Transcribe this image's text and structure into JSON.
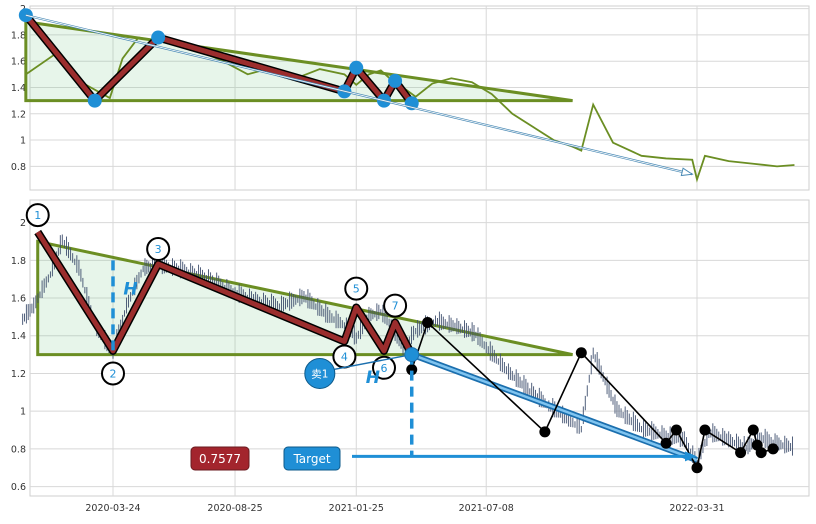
{
  "chart_data": [
    {
      "panel": "top",
      "type": "line",
      "ylim": [
        0.62,
        2.02
      ],
      "yticks": [
        0.8,
        1.0,
        1.2,
        1.4,
        1.6,
        1.8,
        2.0
      ],
      "grid": true,
      "series": [
        {
          "role": "price",
          "color": "#6b8e23",
          "x": [
            "2019-12-05",
            "2020-01-10",
            "2020-02-10",
            "2020-03-20",
            "2020-04-05",
            "2020-04-25",
            "2020-05-20",
            "2020-06-15",
            "2020-07-10",
            "2020-08-10",
            "2020-09-10",
            "2020-10-10",
            "2020-11-10",
            "2020-12-10",
            "2021-01-10",
            "2021-01-25",
            "2021-02-10",
            "2021-02-25",
            "2021-03-10",
            "2021-03-25",
            "2021-04-10",
            "2021-05-01",
            "2021-05-25",
            "2021-06-20",
            "2021-07-15",
            "2021-08-10",
            "2021-09-05",
            "2021-10-01",
            "2021-10-25",
            "2021-11-05",
            "2021-11-20",
            "2021-12-15",
            "2022-01-20",
            "2022-02-20",
            "2022-03-25",
            "2022-03-31",
            "2022-04-10",
            "2022-05-10",
            "2022-06-10",
            "2022-07-10",
            "2022-08-01"
          ],
          "y": [
            1.5,
            1.65,
            1.45,
            1.32,
            1.62,
            1.78,
            1.75,
            1.74,
            1.68,
            1.6,
            1.5,
            1.55,
            1.47,
            1.54,
            1.5,
            1.42,
            1.5,
            1.53,
            1.46,
            1.4,
            1.33,
            1.43,
            1.47,
            1.44,
            1.35,
            1.2,
            1.1,
            1.0,
            0.95,
            0.92,
            1.27,
            0.98,
            0.88,
            0.86,
            0.85,
            0.7,
            0.88,
            0.84,
            0.82,
            0.8,
            0.81
          ]
        },
        {
          "role": "zigzag",
          "color": "#9b2d2d",
          "x": [
            "2019-12-05",
            "2020-03-01",
            "2020-05-20",
            "2021-01-10",
            "2021-01-25",
            "2021-03-01",
            "2021-03-15",
            "2021-04-05"
          ],
          "y": [
            1.95,
            1.3,
            1.78,
            1.37,
            1.55,
            1.3,
            1.45,
            1.28
          ]
        }
      ],
      "triangle": {
        "apex": [
          "2019-12-05",
          1.9
        ],
        "base_end": [
          "2021-10-25",
          1.3
        ]
      },
      "arrow": {
        "from": [
          "2019-12-05",
          1.95
        ],
        "to": [
          "2022-03-25",
          0.74
        ]
      }
    },
    {
      "panel": "bottom",
      "type": "line",
      "ylim": [
        0.55,
        2.12
      ],
      "yticks": [
        0.6,
        0.8,
        1.0,
        1.2,
        1.4,
        1.6,
        1.8,
        2.0
      ],
      "xticks": [
        "2020-03-24",
        "2020-08-25",
        "2021-01-25",
        "2021-07-08",
        "2022-03-31"
      ],
      "grid": true,
      "series": [
        {
          "role": "price",
          "color": "#3f4f6e",
          "x": [
            "2019-12-01",
            "2019-12-15",
            "2020-01-05",
            "2020-01-20",
            "2020-02-10",
            "2020-03-01",
            "2020-03-24",
            "2020-04-10",
            "2020-05-01",
            "2020-05-20",
            "2020-06-20",
            "2020-07-20",
            "2020-08-25",
            "2020-09-20",
            "2020-10-20",
            "2020-11-20",
            "2020-12-20",
            "2021-01-10",
            "2021-01-25",
            "2021-02-10",
            "2021-02-25",
            "2021-03-10",
            "2021-03-25",
            "2021-04-10",
            "2021-05-05",
            "2021-06-01",
            "2021-06-25",
            "2021-07-08",
            "2021-08-05",
            "2021-09-01",
            "2021-09-25",
            "2021-10-20",
            "2021-11-05",
            "2021-11-20",
            "2021-12-20",
            "2022-01-20",
            "2022-02-20",
            "2022-03-15",
            "2022-03-31",
            "2022-04-15",
            "2022-05-10",
            "2022-06-01",
            "2022-06-20",
            "2022-07-10",
            "2022-08-01"
          ],
          "y": [
            1.48,
            1.55,
            1.72,
            1.9,
            1.75,
            1.45,
            1.3,
            1.55,
            1.75,
            1.77,
            1.74,
            1.7,
            1.62,
            1.58,
            1.55,
            1.6,
            1.5,
            1.45,
            1.38,
            1.5,
            1.52,
            1.45,
            1.33,
            1.42,
            1.47,
            1.44,
            1.4,
            1.33,
            1.2,
            1.1,
            1.02,
            0.95,
            0.9,
            1.3,
            1.0,
            0.9,
            0.86,
            0.84,
            0.72,
            0.88,
            0.84,
            0.8,
            0.85,
            0.82,
            0.8
          ]
        },
        {
          "role": "zigzag",
          "color": "#9b2d2d",
          "x": [
            "2019-12-20",
            "2020-03-24",
            "2020-05-20",
            "2021-01-10",
            "2021-01-25",
            "2021-03-01",
            "2021-03-15",
            "2021-04-05"
          ],
          "y": [
            1.95,
            1.32,
            1.78,
            1.37,
            1.55,
            1.32,
            1.47,
            1.3
          ]
        },
        {
          "role": "projection",
          "color": "#1b6fae",
          "x": [
            "2021-04-05",
            "2022-03-31"
          ],
          "y": [
            1.3,
            0.74
          ]
        },
        {
          "role": "pivots",
          "color": "#000000",
          "x": [
            "2021-04-05",
            "2021-04-25",
            "2021-09-20",
            "2021-11-05",
            "2022-02-20",
            "2022-03-05",
            "2022-03-31",
            "2022-04-10",
            "2022-05-25",
            "2022-06-10",
            "2022-06-15",
            "2022-06-20",
            "2022-07-05"
          ],
          "y": [
            1.22,
            1.47,
            0.89,
            1.31,
            0.83,
            0.9,
            0.7,
            0.9,
            0.78,
            0.9,
            0.82,
            0.78,
            0.8
          ]
        }
      ],
      "triangle": {
        "apex": [
          "2019-12-20",
          1.9
        ],
        "base_end": [
          "2021-10-25",
          1.3
        ]
      },
      "point_labels": [
        {
          "text": "1",
          "x": "2019-12-20",
          "y": 2.04
        },
        {
          "text": "2",
          "x": "2020-03-24",
          "y": 1.2
        },
        {
          "text": "3",
          "x": "2020-05-20",
          "y": 1.86
        },
        {
          "text": "4",
          "x": "2021-01-10",
          "y": 1.29
        },
        {
          "text": "5",
          "x": "2021-01-25",
          "y": 1.65
        },
        {
          "text": "6",
          "x": "2021-03-01",
          "y": 1.23
        },
        {
          "text": "7",
          "x": "2021-03-15",
          "y": 1.56
        }
      ],
      "h_markers": [
        {
          "text": "H",
          "x": "2020-04-15",
          "y": 1.62
        },
        {
          "text": "H",
          "x": "2021-02-15",
          "y": 1.15
        }
      ],
      "sell_marker": {
        "text": "卖1",
        "x": "2020-12-10",
        "y": 1.2
      },
      "target_price": {
        "text": "0.7577",
        "value": 0.7577
      },
      "target_button": {
        "text": "Target"
      }
    }
  ]
}
